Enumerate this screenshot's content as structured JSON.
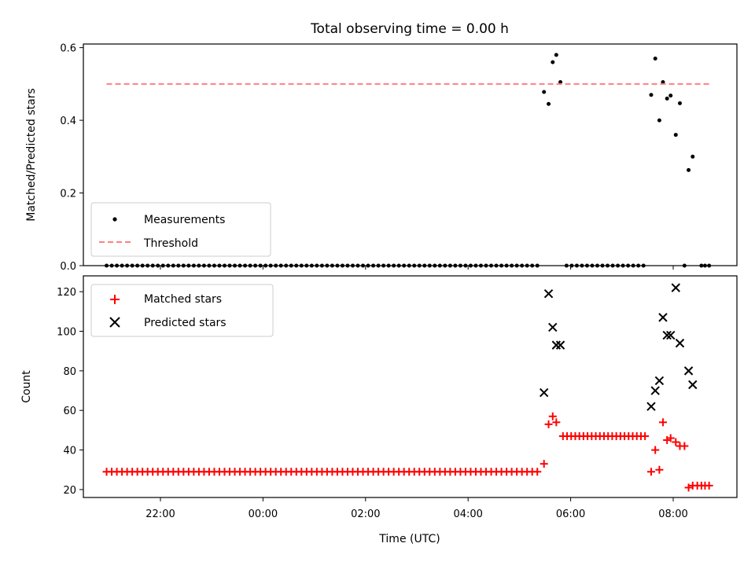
{
  "chart_data": [
    {
      "type": "scatter",
      "title": "Total observing time = 0.00 h",
      "xlabel": "",
      "ylabel": "Matched/Predicted stars",
      "ylim": [
        0,
        0.61
      ],
      "yticks": [
        0.0,
        0.2,
        0.4,
        0.6
      ],
      "ytick_labels": [
        "0.0",
        "0.2",
        "0.4",
        "0.6"
      ],
      "xticks_hours": [
        22,
        24,
        26,
        28,
        30,
        32
      ],
      "x_unit": "hours since 00:00 UTC of first day (values >24 are next day)",
      "legend_position": "lower-left",
      "series": [
        {
          "name": "Measurements",
          "color": "#000000",
          "marker": "dot",
          "points": [
            [
              20.95,
              0
            ],
            [
              21.05,
              0
            ],
            [
              21.15,
              0
            ],
            [
              21.25,
              0
            ],
            [
              21.35,
              0
            ],
            [
              21.45,
              0
            ],
            [
              21.55,
              0
            ],
            [
              21.65,
              0
            ],
            [
              21.75,
              0
            ],
            [
              21.85,
              0
            ],
            [
              21.95,
              0
            ],
            [
              22.05,
              0
            ],
            [
              22.15,
              0
            ],
            [
              22.25,
              0
            ],
            [
              22.35,
              0
            ],
            [
              22.45,
              0
            ],
            [
              22.55,
              0
            ],
            [
              22.65,
              0
            ],
            [
              22.75,
              0
            ],
            [
              22.85,
              0
            ],
            [
              22.95,
              0
            ],
            [
              23.05,
              0
            ],
            [
              23.15,
              0
            ],
            [
              23.25,
              0
            ],
            [
              23.35,
              0
            ],
            [
              23.45,
              0
            ],
            [
              23.55,
              0
            ],
            [
              23.65,
              0
            ],
            [
              23.75,
              0
            ],
            [
              23.85,
              0
            ],
            [
              23.95,
              0
            ],
            [
              24.05,
              0
            ],
            [
              24.15,
              0
            ],
            [
              24.25,
              0
            ],
            [
              24.35,
              0
            ],
            [
              24.45,
              0
            ],
            [
              24.55,
              0
            ],
            [
              24.65,
              0
            ],
            [
              24.75,
              0
            ],
            [
              24.85,
              0
            ],
            [
              24.95,
              0
            ],
            [
              25.05,
              0
            ],
            [
              25.15,
              0
            ],
            [
              25.25,
              0
            ],
            [
              25.35,
              0
            ],
            [
              25.45,
              0
            ],
            [
              25.55,
              0
            ],
            [
              25.65,
              0
            ],
            [
              25.75,
              0
            ],
            [
              25.85,
              0
            ],
            [
              25.95,
              0
            ],
            [
              26.05,
              0
            ],
            [
              26.15,
              0
            ],
            [
              26.25,
              0
            ],
            [
              26.35,
              0
            ],
            [
              26.45,
              0
            ],
            [
              26.55,
              0
            ],
            [
              26.65,
              0
            ],
            [
              26.75,
              0
            ],
            [
              26.85,
              0
            ],
            [
              26.95,
              0
            ],
            [
              27.05,
              0
            ],
            [
              27.15,
              0
            ],
            [
              27.25,
              0
            ],
            [
              27.35,
              0
            ],
            [
              27.45,
              0
            ],
            [
              27.55,
              0
            ],
            [
              27.65,
              0
            ],
            [
              27.75,
              0
            ],
            [
              27.85,
              0
            ],
            [
              27.95,
              0
            ],
            [
              28.05,
              0
            ],
            [
              28.15,
              0
            ],
            [
              28.25,
              0
            ],
            [
              28.35,
              0
            ],
            [
              28.45,
              0
            ],
            [
              28.55,
              0
            ],
            [
              28.65,
              0
            ],
            [
              28.75,
              0
            ],
            [
              28.85,
              0
            ],
            [
              28.95,
              0
            ],
            [
              29.05,
              0
            ],
            [
              29.15,
              0
            ],
            [
              29.25,
              0
            ],
            [
              29.35,
              0
            ],
            [
              29.48,
              0.478
            ],
            [
              29.57,
              0.445
            ],
            [
              29.65,
              0.56
            ],
            [
              29.72,
              0.58
            ],
            [
              29.8,
              0.505
            ],
            [
              29.92,
              0
            ],
            [
              30.02,
              0
            ],
            [
              30.12,
              0
            ],
            [
              30.22,
              0
            ],
            [
              30.32,
              0
            ],
            [
              30.42,
              0
            ],
            [
              30.52,
              0
            ],
            [
              30.62,
              0
            ],
            [
              30.72,
              0
            ],
            [
              30.82,
              0
            ],
            [
              30.92,
              0
            ],
            [
              31.02,
              0
            ],
            [
              31.12,
              0
            ],
            [
              31.22,
              0
            ],
            [
              31.32,
              0
            ],
            [
              31.42,
              0
            ],
            [
              31.57,
              0.47
            ],
            [
              31.65,
              0.57
            ],
            [
              31.73,
              0.4
            ],
            [
              31.8,
              0.505
            ],
            [
              31.88,
              0.46
            ],
            [
              31.95,
              0.468
            ],
            [
              32.05,
              0.36
            ],
            [
              32.13,
              0.447
            ],
            [
              32.22,
              0
            ],
            [
              32.3,
              0.263
            ],
            [
              32.38,
              0.3
            ],
            [
              32.55,
              0
            ],
            [
              32.62,
              0
            ],
            [
              32.7,
              0
            ]
          ]
        },
        {
          "name": "Threshold",
          "color": "#ff7f7f",
          "style": "dashed",
          "points": [
            [
              20.95,
              0.5
            ],
            [
              32.7,
              0.5
            ]
          ]
        }
      ]
    },
    {
      "type": "scatter",
      "title": "",
      "xlabel": "Time (UTC)",
      "ylabel": "Count",
      "ylim": [
        16,
        128
      ],
      "yticks": [
        20,
        40,
        60,
        80,
        100,
        120
      ],
      "ytick_labels": [
        "20",
        "40",
        "60",
        "80",
        "100",
        "120"
      ],
      "xticks_hours": [
        22,
        24,
        26,
        28,
        30,
        32
      ],
      "xtick_labels": [
        "22:00",
        "00:00",
        "02:00",
        "04:00",
        "06:00",
        "08:00"
      ],
      "legend_position": "upper-left",
      "series": [
        {
          "name": "Matched stars",
          "color": "#ff0000",
          "marker": "plus",
          "points": [
            [
              20.95,
              29
            ],
            [
              21.05,
              29
            ],
            [
              21.15,
              29
            ],
            [
              21.25,
              29
            ],
            [
              21.35,
              29
            ],
            [
              21.45,
              29
            ],
            [
              21.55,
              29
            ],
            [
              21.65,
              29
            ],
            [
              21.75,
              29
            ],
            [
              21.85,
              29
            ],
            [
              21.95,
              29
            ],
            [
              22.05,
              29
            ],
            [
              22.15,
              29
            ],
            [
              22.25,
              29
            ],
            [
              22.35,
              29
            ],
            [
              22.45,
              29
            ],
            [
              22.55,
              29
            ],
            [
              22.65,
              29
            ],
            [
              22.75,
              29
            ],
            [
              22.85,
              29
            ],
            [
              22.95,
              29
            ],
            [
              23.05,
              29
            ],
            [
              23.15,
              29
            ],
            [
              23.25,
              29
            ],
            [
              23.35,
              29
            ],
            [
              23.45,
              29
            ],
            [
              23.55,
              29
            ],
            [
              23.65,
              29
            ],
            [
              23.75,
              29
            ],
            [
              23.85,
              29
            ],
            [
              23.95,
              29
            ],
            [
              24.05,
              29
            ],
            [
              24.15,
              29
            ],
            [
              24.25,
              29
            ],
            [
              24.35,
              29
            ],
            [
              24.45,
              29
            ],
            [
              24.55,
              29
            ],
            [
              24.65,
              29
            ],
            [
              24.75,
              29
            ],
            [
              24.85,
              29
            ],
            [
              24.95,
              29
            ],
            [
              25.05,
              29
            ],
            [
              25.15,
              29
            ],
            [
              25.25,
              29
            ],
            [
              25.35,
              29
            ],
            [
              25.45,
              29
            ],
            [
              25.55,
              29
            ],
            [
              25.65,
              29
            ],
            [
              25.75,
              29
            ],
            [
              25.85,
              29
            ],
            [
              25.95,
              29
            ],
            [
              26.05,
              29
            ],
            [
              26.15,
              29
            ],
            [
              26.25,
              29
            ],
            [
              26.35,
              29
            ],
            [
              26.45,
              29
            ],
            [
              26.55,
              29
            ],
            [
              26.65,
              29
            ],
            [
              26.75,
              29
            ],
            [
              26.85,
              29
            ],
            [
              26.95,
              29
            ],
            [
              27.05,
              29
            ],
            [
              27.15,
              29
            ],
            [
              27.25,
              29
            ],
            [
              27.35,
              29
            ],
            [
              27.45,
              29
            ],
            [
              27.55,
              29
            ],
            [
              27.65,
              29
            ],
            [
              27.75,
              29
            ],
            [
              27.85,
              29
            ],
            [
              27.95,
              29
            ],
            [
              28.05,
              29
            ],
            [
              28.15,
              29
            ],
            [
              28.25,
              29
            ],
            [
              28.35,
              29
            ],
            [
              28.45,
              29
            ],
            [
              28.55,
              29
            ],
            [
              28.65,
              29
            ],
            [
              28.75,
              29
            ],
            [
              28.85,
              29
            ],
            [
              28.95,
              29
            ],
            [
              29.05,
              29
            ],
            [
              29.15,
              29
            ],
            [
              29.25,
              29
            ],
            [
              29.35,
              29
            ],
            [
              29.48,
              33
            ],
            [
              29.57,
              53
            ],
            [
              29.65,
              57
            ],
            [
              29.72,
              54
            ],
            [
              29.85,
              47
            ],
            [
              29.93,
              47
            ],
            [
              30.01,
              47
            ],
            [
              30.09,
              47
            ],
            [
              30.17,
              47
            ],
            [
              30.25,
              47
            ],
            [
              30.33,
              47
            ],
            [
              30.41,
              47
            ],
            [
              30.49,
              47
            ],
            [
              30.57,
              47
            ],
            [
              30.65,
              47
            ],
            [
              30.73,
              47
            ],
            [
              30.81,
              47
            ],
            [
              30.89,
              47
            ],
            [
              30.97,
              47
            ],
            [
              31.05,
              47
            ],
            [
              31.13,
              47
            ],
            [
              31.21,
              47
            ],
            [
              31.29,
              47
            ],
            [
              31.37,
              47
            ],
            [
              31.45,
              47
            ],
            [
              31.57,
              29
            ],
            [
              31.65,
              40
            ],
            [
              31.73,
              30
            ],
            [
              31.8,
              54
            ],
            [
              31.88,
              45
            ],
            [
              31.95,
              46
            ],
            [
              32.05,
              44
            ],
            [
              32.13,
              42
            ],
            [
              32.22,
              42
            ],
            [
              32.3,
              21
            ],
            [
              32.38,
              22
            ],
            [
              32.47,
              22
            ],
            [
              32.55,
              22
            ],
            [
              32.62,
              22
            ],
            [
              32.7,
              22
            ]
          ]
        },
        {
          "name": "Predicted stars",
          "color": "#000000",
          "marker": "x",
          "points": [
            [
              29.48,
              69
            ],
            [
              29.57,
              119
            ],
            [
              29.65,
              102
            ],
            [
              29.72,
              93
            ],
            [
              29.8,
              93
            ],
            [
              31.57,
              62
            ],
            [
              31.65,
              70
            ],
            [
              31.73,
              75
            ],
            [
              31.8,
              107
            ],
            [
              31.88,
              98
            ],
            [
              31.95,
              98
            ],
            [
              32.05,
              122
            ],
            [
              32.13,
              94
            ],
            [
              32.3,
              80
            ],
            [
              32.38,
              73
            ]
          ]
        }
      ]
    }
  ]
}
